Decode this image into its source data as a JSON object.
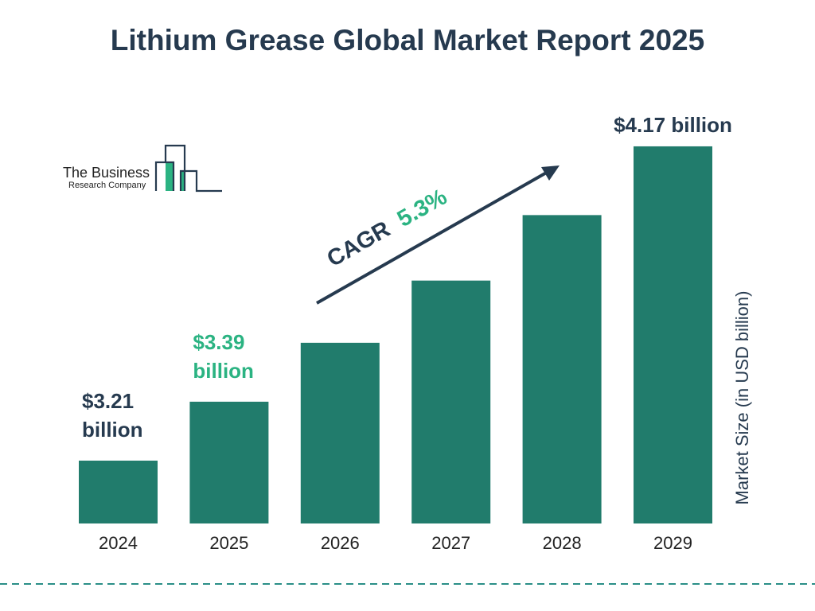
{
  "title": "Lithium Grease Global Market Report 2025",
  "logo": {
    "line1": "The Business",
    "line2": "Research Company"
  },
  "chart_data": {
    "type": "bar",
    "title": "Lithium Grease Global Market Report 2025",
    "categories": [
      "2024",
      "2025",
      "2026",
      "2027",
      "2028",
      "2029"
    ],
    "values": [
      3.21,
      3.39,
      3.57,
      3.76,
      3.96,
      4.17
    ],
    "ylabel": "Market Size (in USD billion)",
    "xlabel": "",
    "grid": false,
    "data_labels": [
      {
        "index": 0,
        "line1": "$3.21",
        "line2": "billion",
        "color": "#263a4f"
      },
      {
        "index": 1,
        "line1": "$3.39",
        "line2": "billion",
        "color": "#2bb382"
      },
      {
        "index": 5,
        "line1": "$4.17 billion",
        "line2": "",
        "color": "#263a4f"
      }
    ],
    "annotation": {
      "label": "CAGR",
      "value": "5.3%"
    },
    "bar_color": "#217c6c",
    "text_color": "#263a4f",
    "accent_color": "#2bb382"
  }
}
